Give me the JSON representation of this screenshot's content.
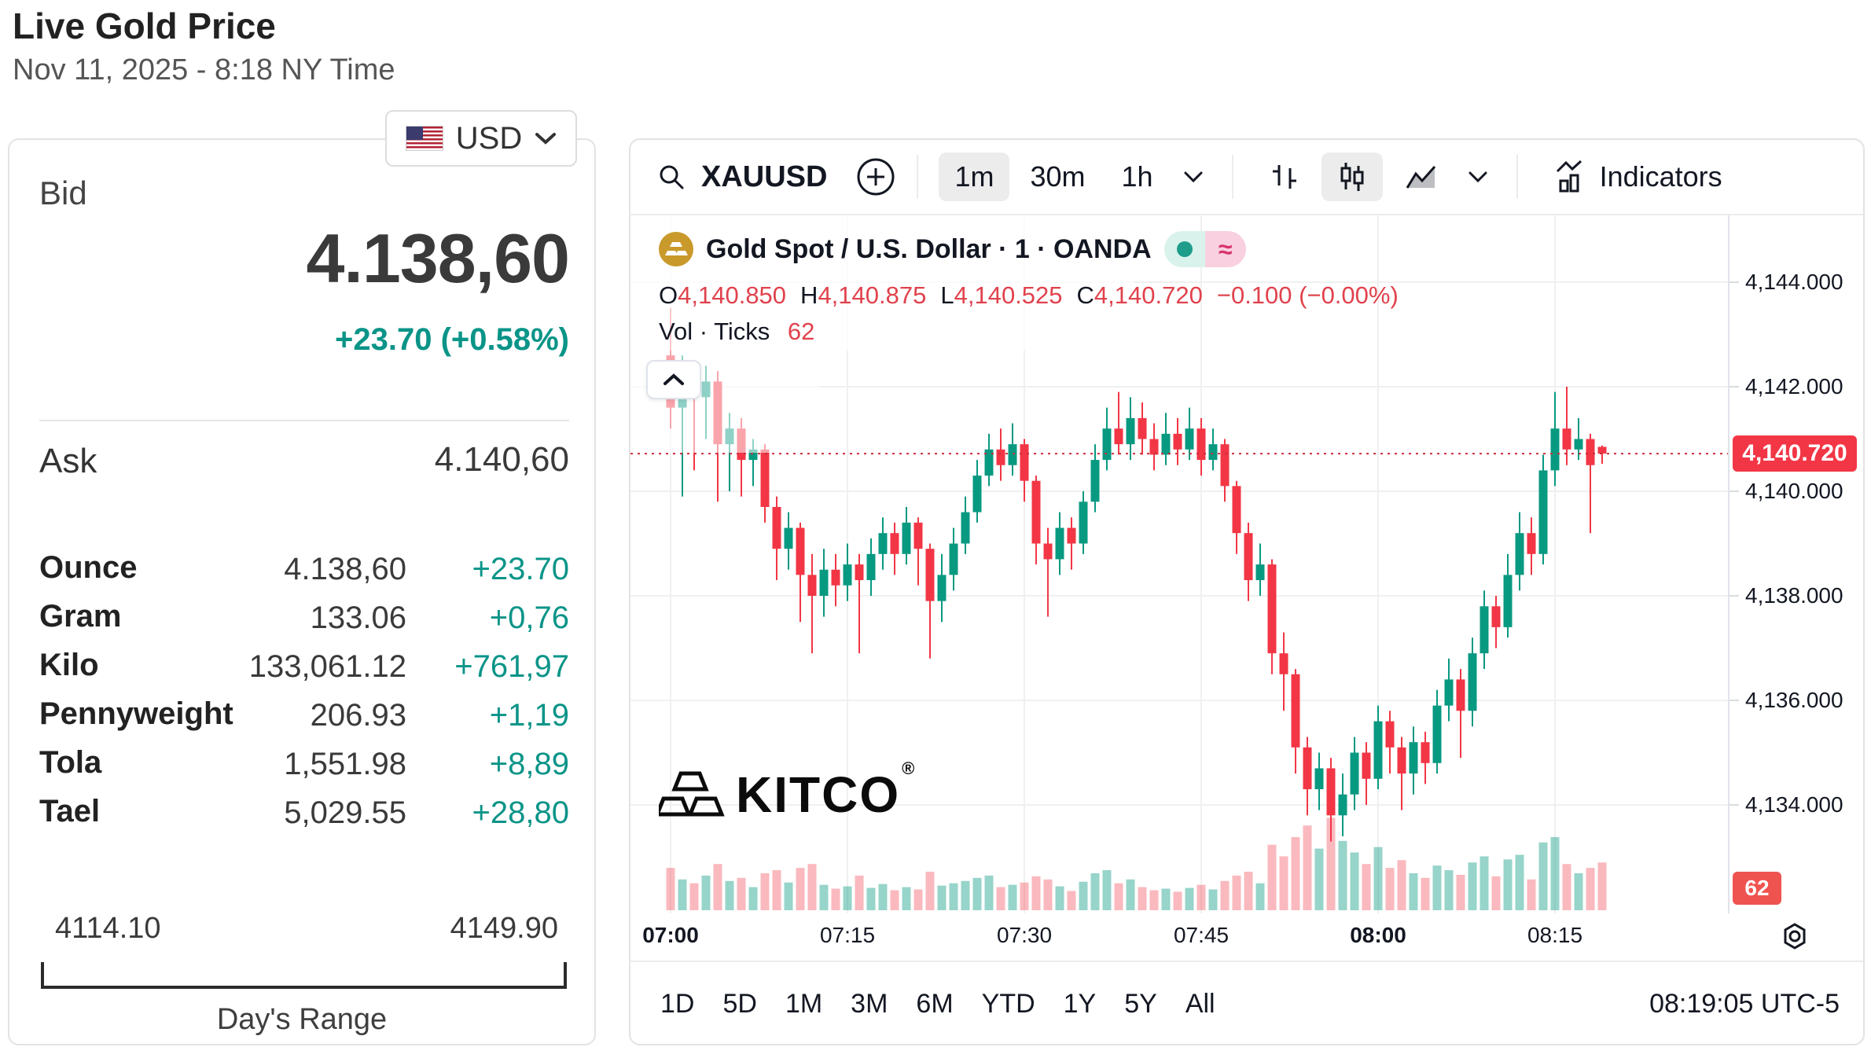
{
  "page": {
    "title": "Live Gold Price",
    "subtitle": "Nov 11, 2025 - 8:18 NY Time"
  },
  "currency_selector": {
    "label": "USD",
    "flag": "us-flag-icon"
  },
  "quote": {
    "bid_label": "Bid",
    "bid": "4.138,60",
    "change": "+23.70 (+0.58%)",
    "ask_label": "Ask",
    "ask": "4.140,60",
    "units": [
      {
        "label": "Ounce",
        "value": "4.138,60",
        "change": "+23.70"
      },
      {
        "label": "Gram",
        "value": "133.06",
        "change": "+0,76"
      },
      {
        "label": "Kilo",
        "value": "133,061.12",
        "change": "+761,97"
      },
      {
        "label": "Pennyweight",
        "value": "206.93",
        "change": "+1,19"
      },
      {
        "label": "Tola",
        "value": "1,551.98",
        "change": "+8,89"
      },
      {
        "label": "Tael",
        "value": "5,029.55",
        "change": "+28,80"
      }
    ],
    "range": {
      "low": "4114.10",
      "high": "4149.90",
      "label": "Day's Range"
    }
  },
  "chart_toolbar": {
    "symbol": "XAUUSD",
    "intervals": [
      {
        "label": "1m",
        "selected": true
      },
      {
        "label": "30m",
        "selected": false
      },
      {
        "label": "1h",
        "selected": false
      }
    ],
    "indicators_label": "Indicators"
  },
  "chart_header": {
    "title": "Gold Spot / U.S. Dollar · 1 · OANDA",
    "ohlc": [
      {
        "k": "O",
        "v": "4,140.850"
      },
      {
        "k": "H",
        "v": "4,140.875"
      },
      {
        "k": "L",
        "v": "4,140.525"
      },
      {
        "k": "C",
        "v": "4,140.720"
      }
    ],
    "change": "−0.100 (−0.00%)",
    "vol_label": "Vol · Ticks",
    "vol_value": "62"
  },
  "watermark": {
    "text": "KITCO",
    "reg": "®"
  },
  "price_scale": {
    "labels": [
      {
        "label": "4,144.000",
        "price": 4144
      },
      {
        "label": "4,142.000",
        "price": 4142
      },
      {
        "label": "4,140.000",
        "price": 4140
      },
      {
        "label": "4,138.000",
        "price": 4138
      },
      {
        "label": "4,136.000",
        "price": 4136
      },
      {
        "label": "4,134.000",
        "price": 4134
      }
    ],
    "last_price_label": "4,140.720",
    "volume_label": "62"
  },
  "time_scale": {
    "ticks": [
      {
        "label": "07:00",
        "minute": 0,
        "bold": true
      },
      {
        "label": "07:15",
        "minute": 15,
        "bold": false
      },
      {
        "label": "07:30",
        "minute": 30,
        "bold": false
      },
      {
        "label": "07:45",
        "minute": 45,
        "bold": false
      },
      {
        "label": "08:00",
        "minute": 60,
        "bold": true
      },
      {
        "label": "08:15",
        "minute": 75,
        "bold": false
      }
    ]
  },
  "footer": {
    "ranges": [
      "1D",
      "5D",
      "1M",
      "3M",
      "6M",
      "YTD",
      "1Y",
      "5Y",
      "All"
    ],
    "clock": "08:19:05 UTC-5"
  },
  "colors": {
    "teal_change": "#0a9488",
    "candle_up": "#089981",
    "candle_down": "#f23645",
    "legend_red": "#e0424d",
    "price_line": "#cc2f3c",
    "tag_bg": "#f23645",
    "badge_bg": "#ef5350",
    "gold": "#c9992b",
    "pill_mint": "#d9f2ec",
    "pill_pink": "#f8d0e0",
    "pill_dot": "#1e9d8b",
    "pill_approx": "#d6336c",
    "grid": "#f0f0f0"
  },
  "chart_data": {
    "type": "candlestick",
    "symbol": "XAUUSD",
    "source": "OANDA",
    "interval_minutes": 1,
    "start_time": "07:00",
    "last_price": 4140.72,
    "last_volume_ticks": 62,
    "price_axis": {
      "visible_min": 4132.6,
      "visible_max": 4145.4,
      "gridlines": [
        4134,
        4136,
        4138,
        4140,
        4142,
        4144
      ]
    },
    "candles_format": [
      "open",
      "high",
      "low",
      "close",
      "volume_ticks"
    ],
    "candles": [
      [
        4142.6,
        4143.5,
        4141.2,
        4141.6,
        55
      ],
      [
        4141.6,
        4142.6,
        4139.9,
        4142.2,
        40
      ],
      [
        4142.2,
        4142.5,
        4140.4,
        4141.8,
        35
      ],
      [
        4141.8,
        4142.4,
        4141.0,
        4142.1,
        45
      ],
      [
        4142.1,
        4142.3,
        4139.8,
        4140.9,
        60
      ],
      [
        4140.9,
        4141.5,
        4140.0,
        4141.2,
        38
      ],
      [
        4141.2,
        4141.4,
        4139.9,
        4140.6,
        42
      ],
      [
        4140.6,
        4141.0,
        4140.1,
        4140.8,
        30
      ],
      [
        4140.8,
        4140.9,
        4139.4,
        4139.7,
        48
      ],
      [
        4139.7,
        4139.9,
        4138.3,
        4138.9,
        52
      ],
      [
        4138.9,
        4139.6,
        4138.5,
        4139.3,
        36
      ],
      [
        4139.3,
        4139.4,
        4137.5,
        4138.4,
        55
      ],
      [
        4138.4,
        4138.8,
        4136.9,
        4138.0,
        60
      ],
      [
        4138.0,
        4138.9,
        4137.6,
        4138.5,
        33
      ],
      [
        4138.5,
        4138.8,
        4137.8,
        4138.2,
        28
      ],
      [
        4138.2,
        4139.0,
        4137.9,
        4138.6,
        31
      ],
      [
        4138.6,
        4138.8,
        4136.9,
        4138.3,
        45
      ],
      [
        4138.3,
        4139.1,
        4138.0,
        4138.8,
        29
      ],
      [
        4138.8,
        4139.5,
        4138.5,
        4139.2,
        34
      ],
      [
        4139.2,
        4139.4,
        4138.4,
        4138.8,
        26
      ],
      [
        4138.8,
        4139.7,
        4138.6,
        4139.4,
        30
      ],
      [
        4139.4,
        4139.5,
        4138.2,
        4138.9,
        27
      ],
      [
        4138.9,
        4139.0,
        4136.8,
        4137.9,
        50
      ],
      [
        4137.9,
        4138.8,
        4137.5,
        4138.4,
        32
      ],
      [
        4138.4,
        4139.3,
        4138.1,
        4139.0,
        35
      ],
      [
        4139.0,
        4139.9,
        4138.8,
        4139.6,
        38
      ],
      [
        4139.6,
        4140.6,
        4139.4,
        4140.3,
        42
      ],
      [
        4140.3,
        4141.1,
        4140.1,
        4140.8,
        45
      ],
      [
        4140.8,
        4141.2,
        4140.2,
        4140.5,
        30
      ],
      [
        4140.5,
        4141.3,
        4140.3,
        4140.9,
        33
      ],
      [
        4140.9,
        4141.0,
        4139.8,
        4140.2,
        36
      ],
      [
        4140.2,
        4140.3,
        4138.6,
        4139.0,
        44
      ],
      [
        4139.0,
        4139.3,
        4137.6,
        4138.7,
        40
      ],
      [
        4138.7,
        4139.6,
        4138.4,
        4139.3,
        31
      ],
      [
        4139.3,
        4139.5,
        4138.5,
        4139.0,
        25
      ],
      [
        4139.0,
        4140.0,
        4138.8,
        4139.8,
        37
      ],
      [
        4139.8,
        4140.9,
        4139.6,
        4140.6,
        48
      ],
      [
        4140.6,
        4141.6,
        4140.4,
        4141.2,
        52
      ],
      [
        4141.2,
        4141.9,
        4140.7,
        4140.9,
        35
      ],
      [
        4140.9,
        4141.8,
        4140.6,
        4141.4,
        40
      ],
      [
        4141.4,
        4141.7,
        4140.7,
        4141.0,
        30
      ],
      [
        4141.0,
        4141.3,
        4140.4,
        4140.7,
        26
      ],
      [
        4140.7,
        4141.5,
        4140.5,
        4141.1,
        28
      ],
      [
        4141.1,
        4141.4,
        4140.5,
        4140.8,
        24
      ],
      [
        4140.8,
        4141.6,
        4140.6,
        4141.2,
        29
      ],
      [
        4141.2,
        4141.4,
        4140.3,
        4140.6,
        33
      ],
      [
        4140.6,
        4141.2,
        4140.4,
        4140.9,
        27
      ],
      [
        4140.9,
        4141.0,
        4139.8,
        4140.1,
        38
      ],
      [
        4140.1,
        4140.2,
        4138.8,
        4139.2,
        45
      ],
      [
        4139.2,
        4139.4,
        4137.9,
        4138.3,
        50
      ],
      [
        4138.3,
        4139.0,
        4138.0,
        4138.6,
        35
      ],
      [
        4138.6,
        4138.7,
        4136.5,
        4136.9,
        85
      ],
      [
        4136.9,
        4137.3,
        4135.8,
        4136.5,
        70
      ],
      [
        4136.5,
        4136.6,
        4134.6,
        4135.1,
        95
      ],
      [
        4135.1,
        4135.3,
        4133.8,
        4134.3,
        110
      ],
      [
        4134.3,
        4135.0,
        4133.9,
        4134.7,
        80
      ],
      [
        4134.7,
        4134.9,
        4133.3,
        4133.8,
        120
      ],
      [
        4133.8,
        4134.6,
        4133.4,
        4134.2,
        90
      ],
      [
        4134.2,
        4135.3,
        4133.9,
        4135.0,
        75
      ],
      [
        4135.0,
        4135.2,
        4134.0,
        4134.5,
        60
      ],
      [
        4134.5,
        4135.9,
        4134.3,
        4135.6,
        82
      ],
      [
        4135.6,
        4135.8,
        4134.6,
        4135.1,
        55
      ],
      [
        4135.1,
        4135.3,
        4133.9,
        4134.6,
        65
      ],
      [
        4134.6,
        4135.5,
        4134.2,
        4135.2,
        48
      ],
      [
        4135.2,
        4135.4,
        4134.4,
        4134.8,
        42
      ],
      [
        4134.8,
        4136.2,
        4134.6,
        4135.9,
        58
      ],
      [
        4135.9,
        4136.8,
        4135.6,
        4136.4,
        52
      ],
      [
        4136.4,
        4136.6,
        4134.9,
        4135.8,
        46
      ],
      [
        4135.8,
        4137.2,
        4135.5,
        4136.9,
        62
      ],
      [
        4136.9,
        4138.1,
        4136.6,
        4137.8,
        70
      ],
      [
        4137.8,
        4138.0,
        4137.0,
        4137.4,
        44
      ],
      [
        4137.4,
        4138.8,
        4137.2,
        4138.4,
        66
      ],
      [
        4138.4,
        4139.6,
        4138.1,
        4139.2,
        72
      ],
      [
        4139.2,
        4139.5,
        4138.4,
        4138.8,
        40
      ],
      [
        4138.8,
        4140.7,
        4138.6,
        4140.4,
        88
      ],
      [
        4140.4,
        4141.9,
        4140.1,
        4141.2,
        95
      ],
      [
        4141.2,
        4142.0,
        4140.5,
        4140.8,
        60
      ],
      [
        4140.8,
        4141.4,
        4140.6,
        4141.0,
        48
      ],
      [
        4141.0,
        4141.1,
        4139.2,
        4140.5,
        55
      ],
      [
        4140.85,
        4140.875,
        4140.525,
        4140.72,
        62
      ]
    ]
  }
}
